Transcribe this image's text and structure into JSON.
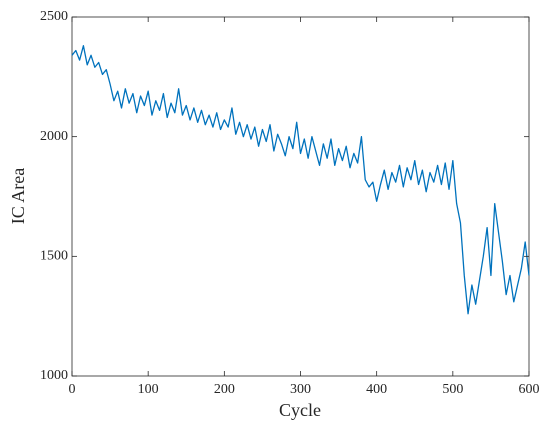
{
  "chart_data": {
    "type": "line",
    "xlabel": "Cycle",
    "ylabel": "IC Area",
    "x": [
      0,
      5,
      10,
      15,
      20,
      25,
      30,
      35,
      40,
      45,
      50,
      55,
      60,
      65,
      70,
      75,
      80,
      85,
      90,
      95,
      100,
      105,
      110,
      115,
      120,
      125,
      130,
      135,
      140,
      145,
      150,
      155,
      160,
      165,
      170,
      175,
      180,
      185,
      190,
      195,
      200,
      205,
      210,
      215,
      220,
      225,
      230,
      235,
      240,
      245,
      250,
      255,
      260,
      265,
      270,
      275,
      280,
      285,
      290,
      295,
      300,
      305,
      310,
      315,
      320,
      325,
      330,
      335,
      340,
      345,
      350,
      355,
      360,
      365,
      370,
      375,
      380,
      385,
      390,
      395,
      400,
      405,
      410,
      415,
      420,
      425,
      430,
      435,
      440,
      445,
      450,
      455,
      460,
      465,
      470,
      475,
      480,
      485,
      490,
      495,
      500,
      505,
      510,
      515,
      520,
      525,
      530,
      535,
      540,
      545,
      550,
      555,
      560,
      565,
      570,
      575,
      580,
      585,
      590,
      595,
      600
    ],
    "series": [
      {
        "name": "IC Area",
        "color": "#0072bd",
        "values": [
          2340,
          2360,
          2320,
          2380,
          2300,
          2340,
          2290,
          2310,
          2260,
          2280,
          2220,
          2150,
          2190,
          2120,
          2200,
          2140,
          2180,
          2100,
          2170,
          2130,
          2190,
          2090,
          2150,
          2110,
          2180,
          2080,
          2140,
          2100,
          2200,
          2090,
          2130,
          2070,
          2120,
          2060,
          2110,
          2050,
          2090,
          2040,
          2100,
          2030,
          2070,
          2040,
          2120,
          2010,
          2060,
          2000,
          2050,
          1990,
          2040,
          1960,
          2030,
          1980,
          2050,
          1940,
          2010,
          1970,
          1920,
          2000,
          1950,
          2060,
          1930,
          1990,
          1910,
          2000,
          1940,
          1880,
          1970,
          1910,
          1990,
          1880,
          1950,
          1900,
          1960,
          1870,
          1930,
          1890,
          2000,
          1820,
          1790,
          1810,
          1730,
          1800,
          1860,
          1780,
          1850,
          1810,
          1880,
          1790,
          1870,
          1820,
          1900,
          1800,
          1860,
          1770,
          1850,
          1810,
          1880,
          1800,
          1890,
          1780,
          1900,
          1720,
          1640,
          1420,
          1260,
          1380,
          1300,
          1400,
          1500,
          1620,
          1420,
          1720,
          1600,
          1480,
          1340,
          1420,
          1310,
          1380,
          1450,
          1560,
          1420
        ]
      }
    ],
    "xlim": [
      0,
      600
    ],
    "xticks": [
      0,
      100,
      200,
      300,
      400,
      500,
      600
    ],
    "ylim": [
      1000,
      2500
    ],
    "yticks": [
      1000,
      1500,
      2000,
      2500
    ]
  }
}
